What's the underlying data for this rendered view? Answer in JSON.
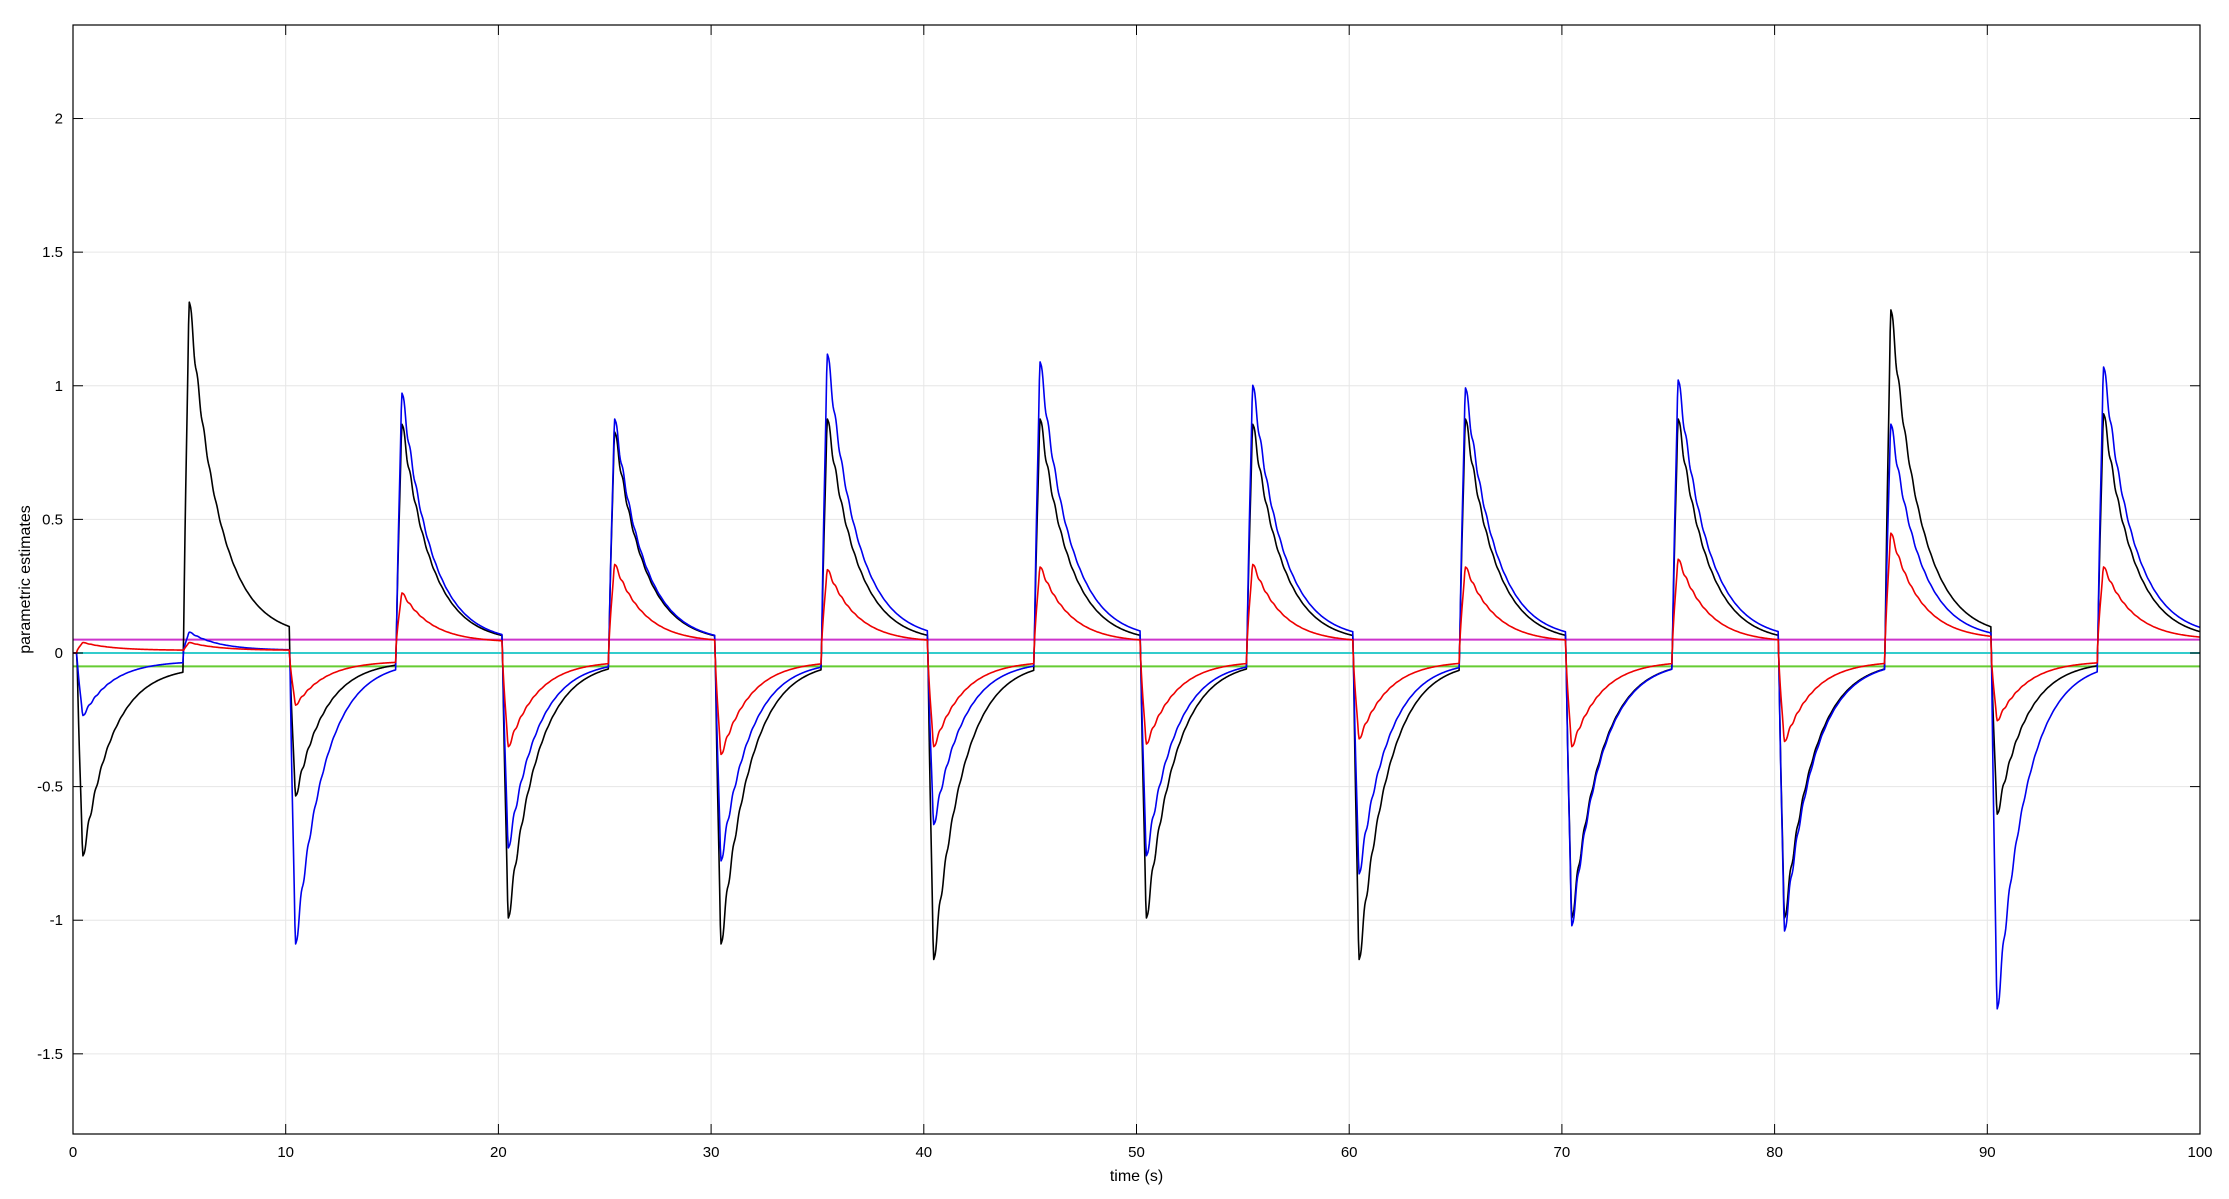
{
  "chart_data": {
    "type": "line",
    "title": "",
    "xlabel": "time (s)",
    "ylabel": "parametric estimates",
    "xlim": [
      0,
      100
    ],
    "ylim": [
      -1.8,
      2.35
    ],
    "xticks": [
      0,
      10,
      20,
      30,
      40,
      50,
      60,
      70,
      80,
      90,
      100
    ],
    "yticks": [
      -1.5,
      -1,
      -0.5,
      0,
      0.5,
      1,
      1.5,
      2
    ],
    "ytick_labels": [
      "-1.5",
      "-1",
      "-0.5",
      "0",
      "0.5",
      "1",
      "1.5",
      "2"
    ],
    "grid": true,
    "legend": "none",
    "period": 10,
    "constants": [
      {
        "color": "#cc33cc",
        "y": 0.05
      },
      {
        "color": "#33cccc",
        "y": 0.0
      },
      {
        "color": "#66cc33",
        "y": -0.05
      }
    ],
    "series": [
      {
        "color": "#000000",
        "events": [
          {
            "t": 0.2,
            "peak": -0.78,
            "base": -0.05
          },
          {
            "t": 5.2,
            "peak": 1.35,
            "base": 0.06
          },
          {
            "t": 10.2,
            "peak": -0.55,
            "base": -0.03
          },
          {
            "t": 15.2,
            "peak": 0.88,
            "base": 0.04
          },
          {
            "t": 20.2,
            "peak": -1.02,
            "base": -0.03
          },
          {
            "t": 25.2,
            "peak": 0.85,
            "base": 0.04
          },
          {
            "t": 30.2,
            "peak": -1.12,
            "base": -0.03
          },
          {
            "t": 35.2,
            "peak": 0.9,
            "base": 0.04
          },
          {
            "t": 40.2,
            "peak": -1.18,
            "base": -0.03
          },
          {
            "t": 45.2,
            "peak": 0.9,
            "base": 0.04
          },
          {
            "t": 50.2,
            "peak": -1.02,
            "base": -0.03
          },
          {
            "t": 55.2,
            "peak": 0.88,
            "base": 0.04
          },
          {
            "t": 60.2,
            "peak": -1.18,
            "base": -0.03
          },
          {
            "t": 65.2,
            "peak": 0.9,
            "base": 0.04
          },
          {
            "t": 70.2,
            "peak": -1.02,
            "base": -0.03
          },
          {
            "t": 75.2,
            "peak": 0.9,
            "base": 0.04
          },
          {
            "t": 80.2,
            "peak": -1.02,
            "base": -0.03
          },
          {
            "t": 85.2,
            "peak": 1.32,
            "base": 0.06
          },
          {
            "t": 90.2,
            "peak": -0.62,
            "base": -0.03
          },
          {
            "t": 95.2,
            "peak": 0.92,
            "base": 0.05
          }
        ]
      },
      {
        "color": "#0000ee",
        "events": [
          {
            "t": 0.2,
            "peak": -0.24,
            "base": -0.03
          },
          {
            "t": 5.2,
            "peak": 0.08,
            "base": 0.01
          },
          {
            "t": 10.2,
            "peak": -1.12,
            "base": -0.03
          },
          {
            "t": 15.2,
            "peak": 1.0,
            "base": 0.04
          },
          {
            "t": 20.2,
            "peak": -0.75,
            "base": -0.03
          },
          {
            "t": 25.2,
            "peak": 0.9,
            "base": 0.04
          },
          {
            "t": 30.2,
            "peak": -0.8,
            "base": -0.03
          },
          {
            "t": 35.2,
            "peak": 1.15,
            "base": 0.05
          },
          {
            "t": 40.2,
            "peak": -0.66,
            "base": -0.03
          },
          {
            "t": 45.2,
            "peak": 1.12,
            "base": 0.05
          },
          {
            "t": 50.2,
            "peak": -0.78,
            "base": -0.03
          },
          {
            "t": 55.2,
            "peak": 1.03,
            "base": 0.05
          },
          {
            "t": 60.2,
            "peak": -0.85,
            "base": -0.03
          },
          {
            "t": 65.2,
            "peak": 1.02,
            "base": 0.05
          },
          {
            "t": 70.2,
            "peak": -1.05,
            "base": -0.03
          },
          {
            "t": 75.2,
            "peak": 1.05,
            "base": 0.05
          },
          {
            "t": 80.2,
            "peak": -1.07,
            "base": -0.03
          },
          {
            "t": 85.2,
            "peak": 0.88,
            "base": 0.05
          },
          {
            "t": 90.2,
            "peak": -1.37,
            "base": -0.03
          },
          {
            "t": 95.2,
            "peak": 1.1,
            "base": 0.06
          }
        ]
      },
      {
        "color": "#ee0000",
        "events": [
          {
            "t": 0.2,
            "peak": 0.04,
            "base": 0.01
          },
          {
            "t": 5.2,
            "peak": 0.04,
            "base": 0.01
          },
          {
            "t": 10.2,
            "peak": -0.2,
            "base": -0.03
          },
          {
            "t": 15.2,
            "peak": 0.23,
            "base": 0.04
          },
          {
            "t": 20.2,
            "peak": -0.36,
            "base": -0.03
          },
          {
            "t": 25.2,
            "peak": 0.34,
            "base": 0.04
          },
          {
            "t": 30.2,
            "peak": -0.39,
            "base": -0.03
          },
          {
            "t": 35.2,
            "peak": 0.32,
            "base": 0.04
          },
          {
            "t": 40.2,
            "peak": -0.36,
            "base": -0.03
          },
          {
            "t": 45.2,
            "peak": 0.33,
            "base": 0.04
          },
          {
            "t": 50.2,
            "peak": -0.35,
            "base": -0.03
          },
          {
            "t": 55.2,
            "peak": 0.34,
            "base": 0.04
          },
          {
            "t": 60.2,
            "peak": -0.33,
            "base": -0.03
          },
          {
            "t": 65.2,
            "peak": 0.33,
            "base": 0.04
          },
          {
            "t": 70.2,
            "peak": -0.36,
            "base": -0.03
          },
          {
            "t": 75.2,
            "peak": 0.36,
            "base": 0.04
          },
          {
            "t": 80.2,
            "peak": -0.34,
            "base": -0.03
          },
          {
            "t": 85.2,
            "peak": 0.46,
            "base": 0.05
          },
          {
            "t": 90.2,
            "peak": -0.26,
            "base": -0.03
          },
          {
            "t": 95.2,
            "peak": 0.33,
            "base": 0.05
          }
        ]
      }
    ]
  }
}
